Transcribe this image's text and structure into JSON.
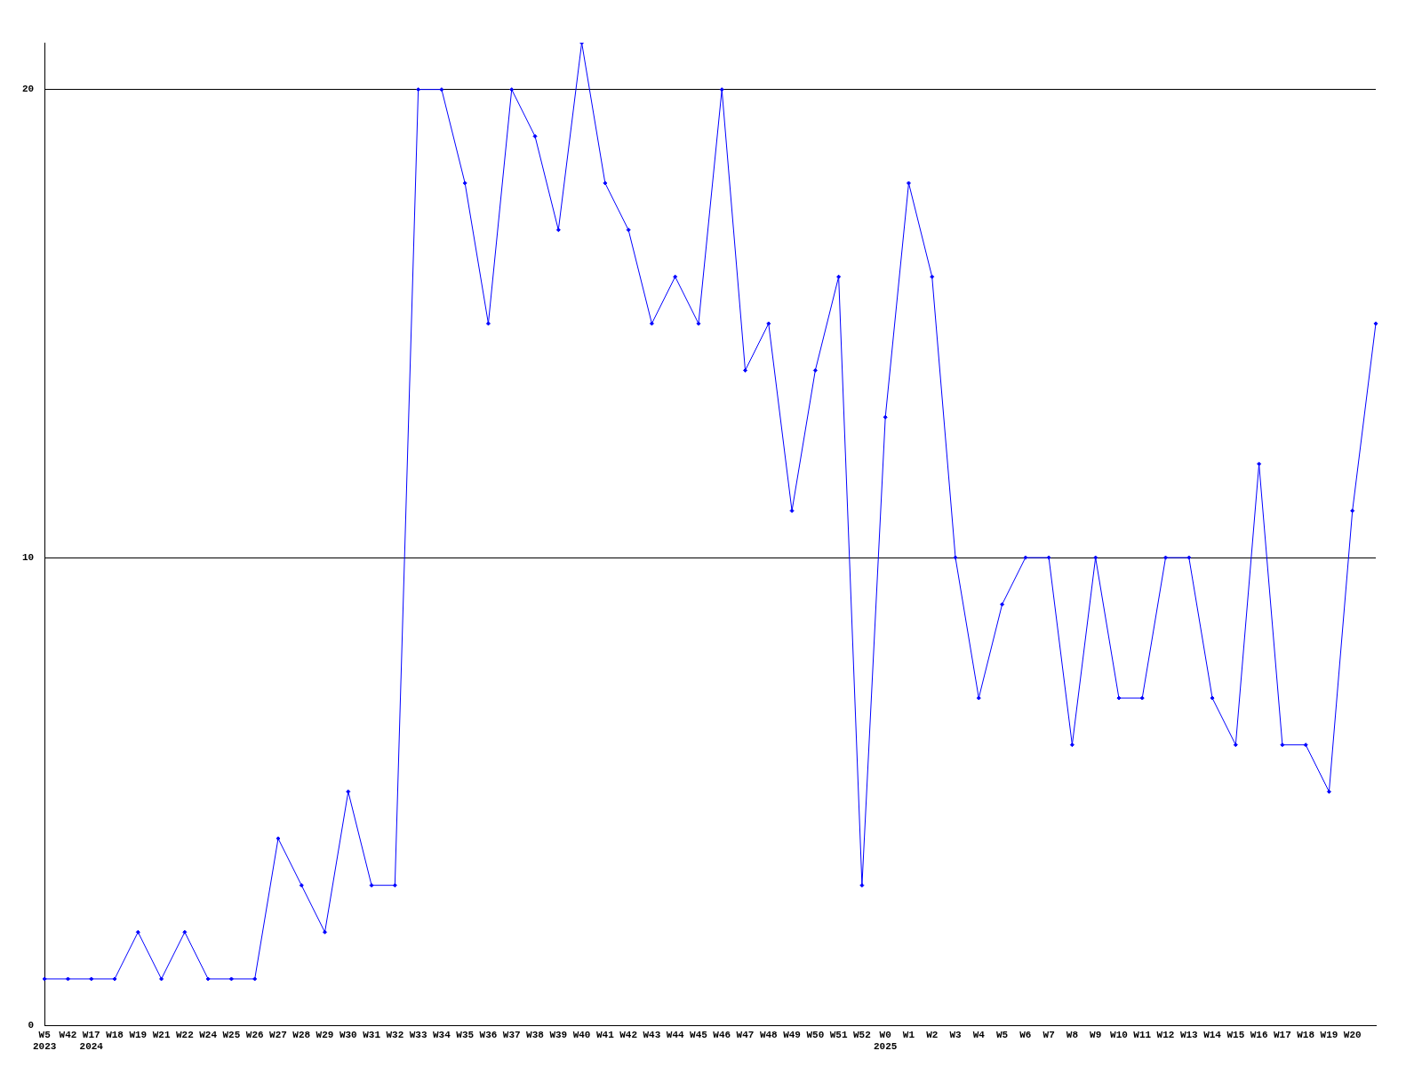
{
  "chart_data": {
    "type": "line",
    "categories": [
      "W5\n2023",
      "W42",
      "W17\n2024",
      "W18",
      "W19",
      "W21",
      "W22",
      "W24",
      "W25",
      "W26",
      "W27",
      "W28",
      "W29",
      "W30",
      "W31",
      "W32",
      "W33",
      "W34",
      "W35",
      "W36",
      "W37",
      "W38",
      "W39",
      "W40",
      "W41",
      "W42",
      "W43",
      "W44",
      "W45",
      "W46",
      "W47",
      "W48",
      "W49",
      "W50",
      "W51",
      "W52",
      "W0\n2025",
      "W1",
      "W2",
      "W3",
      "W4",
      "W5",
      "W6",
      "W7",
      "W8",
      "W9",
      "W10",
      "W11",
      "W12",
      "W13",
      "W14",
      "W15",
      "W16",
      "W17",
      "W18",
      "W19",
      "W20",
      null
    ],
    "series": [
      {
        "color": "#0000ff",
        "values": [
          1,
          1,
          1,
          1,
          2,
          1,
          2,
          1,
          1,
          1,
          4,
          3,
          2,
          5,
          3,
          3,
          20,
          20,
          18,
          15,
          20,
          19,
          17,
          21,
          18,
          17,
          15,
          16,
          15,
          20,
          14,
          15,
          11,
          14,
          16,
          3,
          13,
          18,
          16,
          10,
          7,
          9,
          10,
          10,
          6,
          10,
          7,
          7,
          10,
          10,
          7,
          6,
          12,
          6,
          6,
          5,
          11,
          15
        ]
      }
    ],
    "ylim": [
      0,
      21
    ],
    "yticks": [
      0,
      10,
      20
    ],
    "grid": "y",
    "legend": false,
    "marker": "diamond",
    "line_style": "solid"
  }
}
